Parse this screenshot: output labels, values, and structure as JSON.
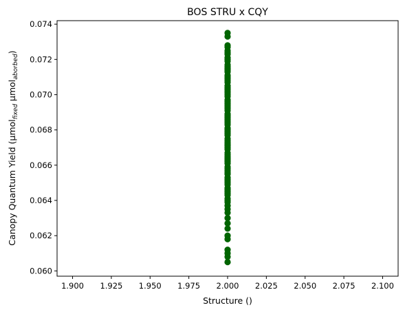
{
  "chart_data": {
    "type": "scatter",
    "title": "BOS STRU x CQY",
    "xlabel": "Structure ()",
    "ylabel": {
      "prefix": "Canopy Quantum Yield (μmol",
      "sub1": "fixed",
      "middle": " μmol",
      "sub2": "aborbed",
      "suffix": ")"
    },
    "xlim": [
      1.89,
      2.11
    ],
    "ylim": [
      0.0597,
      0.0742
    ],
    "x_ticks": [
      {
        "value": 1.9,
        "label": "1.900"
      },
      {
        "value": 1.925,
        "label": "1.925"
      },
      {
        "value": 1.95,
        "label": "1.950"
      },
      {
        "value": 1.975,
        "label": "1.975"
      },
      {
        "value": 2.0,
        "label": "2.000"
      },
      {
        "value": 2.025,
        "label": "2.025"
      },
      {
        "value": 2.05,
        "label": "2.050"
      },
      {
        "value": 2.075,
        "label": "2.075"
      },
      {
        "value": 2.1,
        "label": "2.100"
      }
    ],
    "y_ticks": [
      {
        "value": 0.06,
        "label": "0.060"
      },
      {
        "value": 0.062,
        "label": "0.062"
      },
      {
        "value": 0.064,
        "label": "0.064"
      },
      {
        "value": 0.066,
        "label": "0.066"
      },
      {
        "value": 0.068,
        "label": "0.068"
      },
      {
        "value": 0.07,
        "label": "0.070"
      },
      {
        "value": 0.072,
        "label": "0.072"
      },
      {
        "value": 0.074,
        "label": "0.074"
      }
    ],
    "grid": false,
    "marker_color": "#006400",
    "series": [
      {
        "x": [
          2.0,
          2.0,
          2.0,
          2.0,
          2.0,
          2.0,
          2.0,
          2.0,
          2.0,
          2.0,
          2.0,
          2.0,
          2.0,
          2.0,
          2.0,
          2.0,
          2.0,
          2.0,
          2.0,
          2.0,
          2.0,
          2.0,
          2.0,
          2.0,
          2.0,
          2.0,
          2.0,
          2.0,
          2.0,
          2.0,
          2.0,
          2.0,
          2.0,
          2.0,
          2.0,
          2.0,
          2.0,
          2.0,
          2.0,
          2.0,
          2.0,
          2.0,
          2.0,
          2.0,
          2.0,
          2.0,
          2.0,
          2.0,
          2.0,
          2.0,
          2.0,
          2.0,
          2.0,
          2.0,
          2.0,
          2.0,
          2.0,
          2.0,
          2.0,
          2.0,
          2.0,
          2.0,
          2.0,
          2.0,
          2.0,
          2.0,
          2.0,
          2.0,
          2.0,
          2.0,
          2.0,
          2.0,
          2.0,
          2.0,
          2.0,
          2.0,
          2.0,
          2.0,
          2.0,
          2.0,
          2.0,
          2.0,
          2.0,
          2.0,
          2.0,
          2.0,
          2.0,
          2.0,
          2.0,
          2.0
        ],
        "y": [
          0.0605,
          0.0608,
          0.061,
          0.0612,
          0.0618,
          0.062,
          0.0624,
          0.0627,
          0.063,
          0.0633,
          0.0635,
          0.0637,
          0.0639,
          0.0641,
          0.0643,
          0.0645,
          0.0647,
          0.0649,
          0.0651,
          0.0653,
          0.0655,
          0.0657,
          0.0659,
          0.0661,
          0.0663,
          0.0665,
          0.0667,
          0.0669,
          0.0671,
          0.0673,
          0.0675,
          0.0677,
          0.0679,
          0.0681,
          0.0683,
          0.0685,
          0.0687,
          0.0689,
          0.0691,
          0.0693,
          0.0695,
          0.0697,
          0.0699,
          0.0701,
          0.0703,
          0.0705,
          0.0707,
          0.0709,
          0.0711,
          0.0713,
          0.0715,
          0.0717,
          0.0719,
          0.0721,
          0.0723,
          0.0725,
          0.0727,
          0.0728,
          0.0733,
          0.0735,
          0.0646,
          0.0658,
          0.0666,
          0.0672,
          0.068,
          0.0688,
          0.0696,
          0.0702,
          0.0708,
          0.0714,
          0.072,
          0.0652,
          0.0662,
          0.0674,
          0.0684,
          0.0692,
          0.07,
          0.071,
          0.0716,
          0.0724,
          0.064,
          0.0644,
          0.065,
          0.0656,
          0.0664,
          0.067,
          0.0678,
          0.0686,
          0.0694,
          0.0704
        ]
      }
    ]
  }
}
